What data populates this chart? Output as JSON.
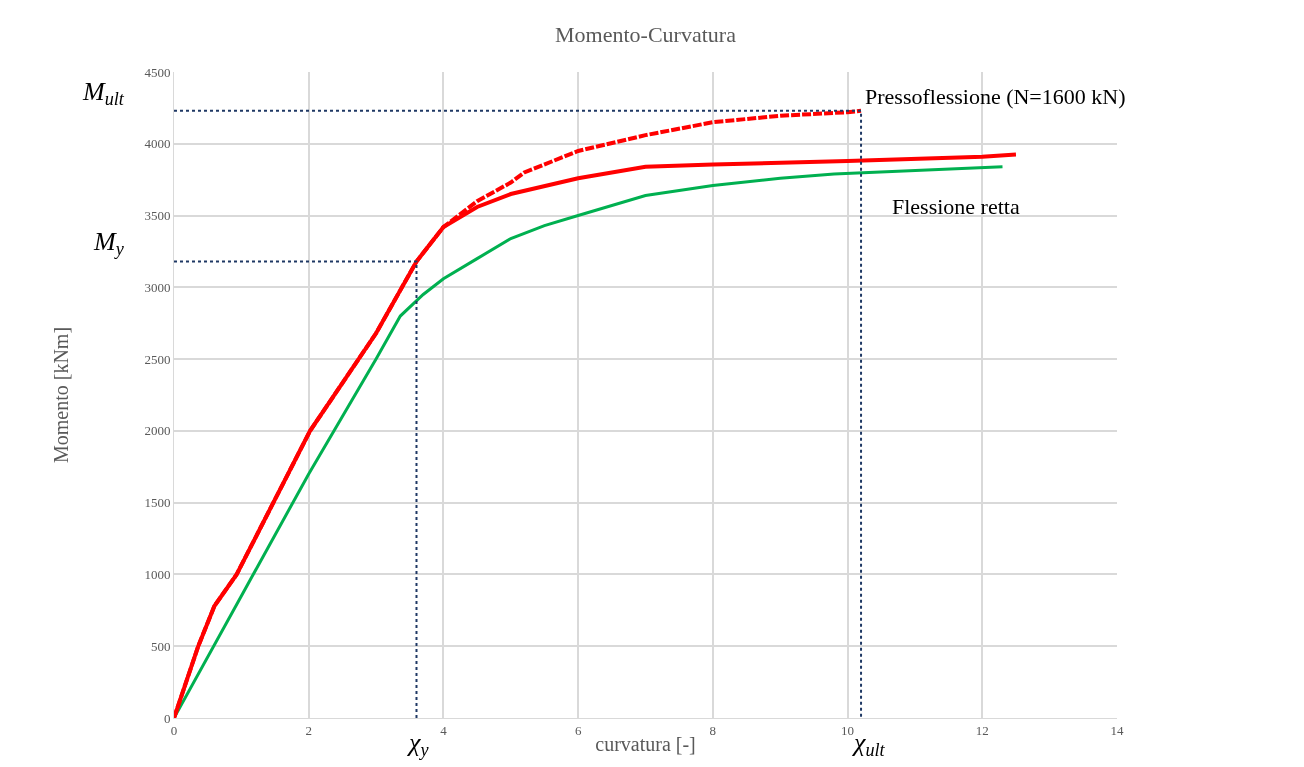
{
  "chart_data": {
    "type": "line",
    "title": "Momento-Curvatura",
    "xlabel": "curvatura [-]",
    "ylabel": "Momento [kNm]",
    "xlim": [
      0,
      14
    ],
    "xticks": [
      0,
      2,
      4,
      6,
      8,
      10,
      12,
      14
    ],
    "ylim": [
      0,
      4500
    ],
    "yticks": [
      0,
      500,
      1000,
      1500,
      2000,
      2500,
      3000,
      3500,
      4000,
      4500
    ],
    "grid": true,
    "legend": false,
    "marker": "none",
    "series": [
      {
        "name": "Flessione retta",
        "color": "#00b050",
        "line_style": "solid",
        "x": [
          0,
          1,
          2,
          3,
          3.36,
          3.7,
          4,
          4.5,
          5,
          5.5,
          6,
          7,
          8,
          9,
          9.8,
          12.3
        ],
        "values": [
          0,
          850,
          1700,
          2500,
          2800,
          2950,
          3060,
          3200,
          3340,
          3430,
          3500,
          3640,
          3710,
          3760,
          3790,
          3840
        ]
      },
      {
        "color": "#ff0000",
        "line_style": "solid",
        "x": [
          0,
          0.36,
          0.6,
          0.93,
          2.02,
          3,
          3.6,
          4,
          4.5,
          5,
          6,
          7,
          8,
          10,
          12,
          12.5
        ],
        "values": [
          0,
          500,
          780,
          1000,
          2000,
          2680,
          3180,
          3420,
          3560,
          3650,
          3760,
          3840,
          3855,
          3880,
          3910,
          3925
        ]
      },
      {
        "name": "Pressoflessione (N=1600 kN)",
        "color": "#ff0000",
        "line_style": "dashed",
        "x": [
          0,
          0.36,
          0.6,
          0.93,
          2.02,
          3,
          3.6,
          4,
          4.5,
          5,
          5.2,
          6,
          7,
          8,
          9,
          10,
          10.2
        ],
        "values": [
          0,
          500,
          780,
          1000,
          2000,
          2680,
          3180,
          3420,
          3600,
          3730,
          3800,
          3950,
          4060,
          4150,
          4195,
          4220,
          4230
        ]
      },
      {
        "color": "#1f3864",
        "line_style": "dotted",
        "x": [
          0,
          10.2,
          10.2
        ],
        "values": [
          4230,
          4230,
          0
        ]
      },
      {
        "color": "#1f3864",
        "line_style": "dotted",
        "x": [
          0,
          3.6,
          3.6
        ],
        "values": [
          3180,
          3180,
          0
        ]
      }
    ],
    "annotations": [
      "M$_{ult}$",
      "M$_{y}$",
      "χ$_{y}$",
      "χ$_{ult}$"
    ]
  }
}
